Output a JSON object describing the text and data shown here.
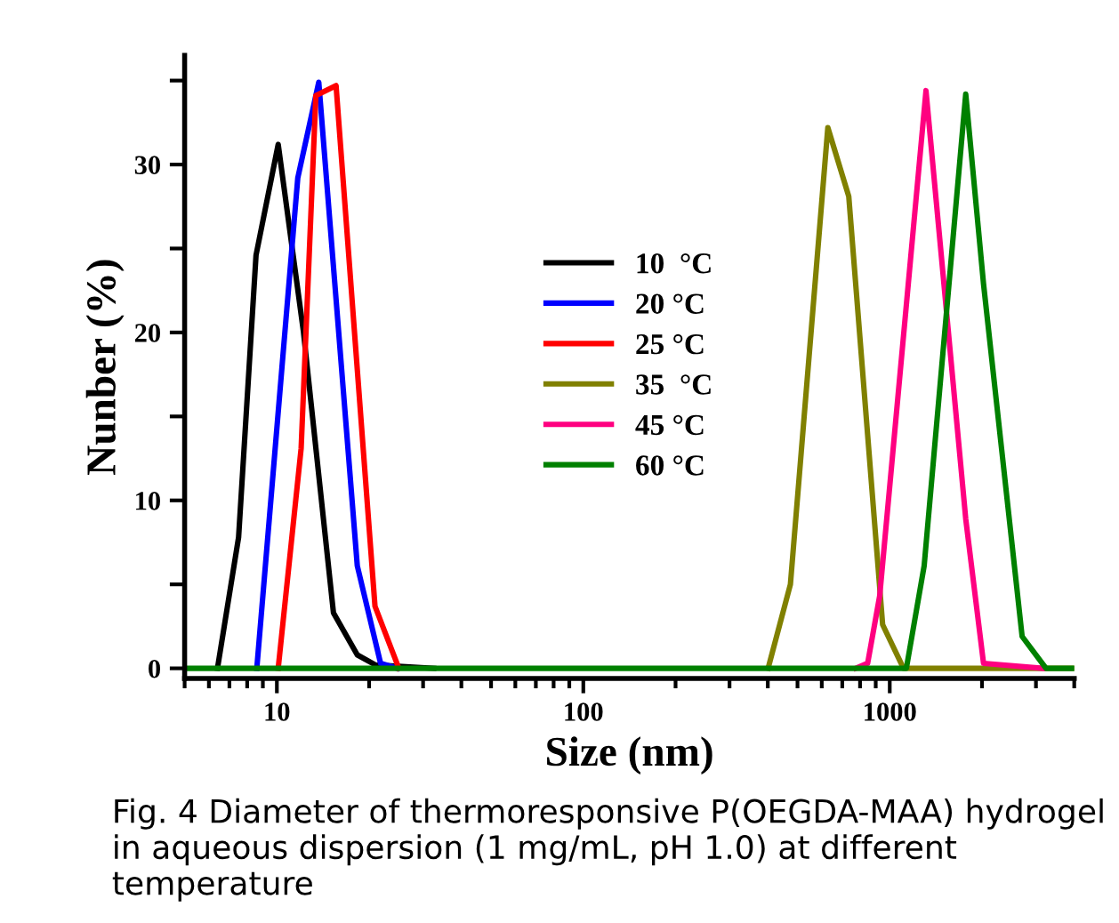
{
  "chart_data": {
    "type": "line",
    "xlabel": "Size (nm)",
    "ylabel": "Nunber (%)",
    "log": "x",
    "xlim": [
      5,
      4000
    ],
    "xticks": [
      10,
      100,
      1000
    ],
    "ylim": [
      -0.6,
      36.5
    ],
    "yticks": [
      0,
      {
        "value": 5,
        "label": null
      },
      10,
      {
        "value": 15,
        "label": null
      },
      20,
      {
        "value": 25,
        "label": null
      },
      30,
      {
        "value": 35,
        "label": null
      }
    ],
    "legend": "center",
    "grid": false,
    "marker": "none",
    "line_style": "solid",
    "annotations": [
      "Fig. 4 Diameter of thermoresponsive P(OEGDA-MAA) hydrogel in aqueous dispersion (1 mg/mL, pH 1.0) at different temperature"
    ],
    "series": [
      {
        "name": "10  °C",
        "color": "#000000",
        "x": [
          6.4,
          7.5,
          8.55,
          10.1,
          12.2,
          15.3,
          18.3,
          21,
          32.5
        ],
        "values": [
          0,
          7.8,
          24.6,
          31.2,
          20.1,
          3.3,
          0.8,
          0.2,
          0
        ]
      },
      {
        "name": "20 °C",
        "color": "#0000ff",
        "x": [
          8.6,
          11.7,
          13.7,
          18.3,
          21.8,
          24.7
        ],
        "values": [
          0,
          29.2,
          34.9,
          6.1,
          0.3,
          0
        ]
      },
      {
        "name": "25 °C",
        "color": "#ff0000",
        "x": [
          10.1,
          12,
          13.4,
          15.6,
          20.9,
          25
        ],
        "values": [
          0,
          13.1,
          34.1,
          34.7,
          3.7,
          0
        ]
      },
      {
        "name": "35  °C",
        "color": "#808000",
        "x": [
          401,
          474,
          628,
          735,
          948,
          1109,
          4000
        ],
        "values": [
          0,
          5.0,
          32.2,
          28.1,
          2.6,
          0,
          0
        ]
      },
      {
        "name": "45 °C",
        "color": "#ff0080",
        "x": [
          775,
          847,
          927,
          1313,
          1770,
          2023,
          3162
        ],
        "values": [
          0,
          0.3,
          4.3,
          34.4,
          8.9,
          0.3,
          0
        ]
      },
      {
        "name": "60 °C",
        "color": "#008000",
        "x": [
          5,
          1133,
          1295,
          1770,
          2023,
          2704,
          3236,
          4000
        ],
        "values": [
          0,
          0,
          6.1,
          34.2,
          22.9,
          1.9,
          0,
          0
        ]
      }
    ]
  }
}
